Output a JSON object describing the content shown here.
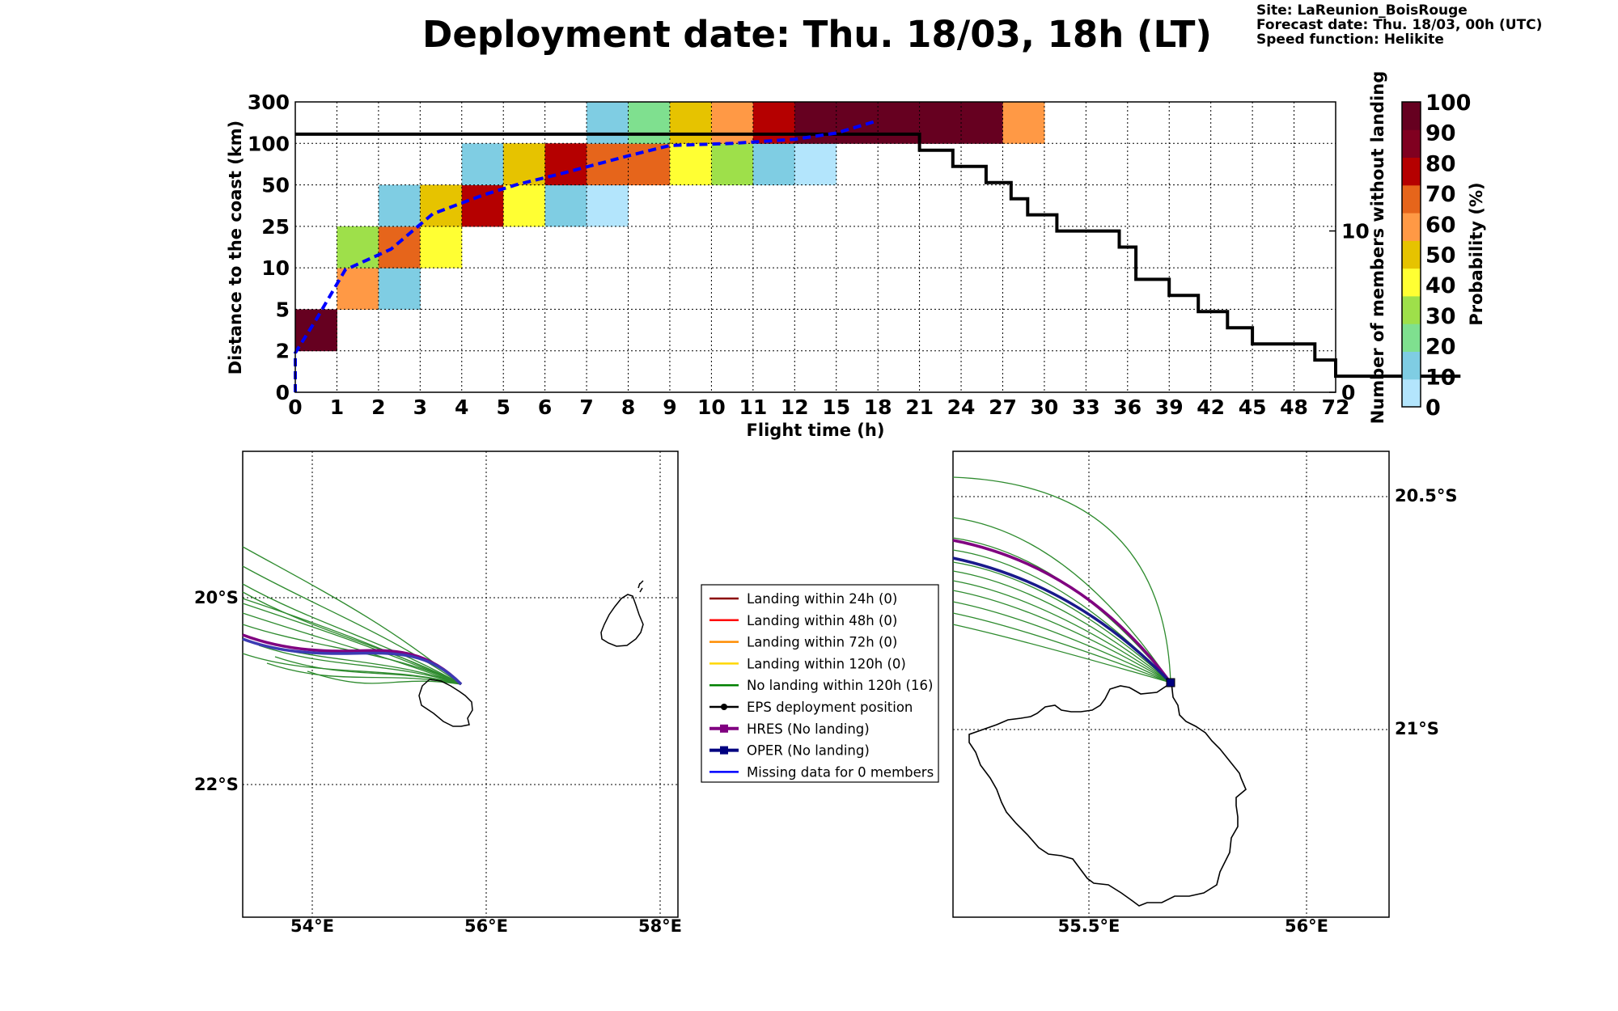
{
  "header": {
    "title": "Deployment date: Thu. 18/03, 18h (LT)",
    "site": "Site: LaReunion_BoisRouge",
    "forecast": "Forecast date: Thu. 18/03, 00h (UTC)",
    "speed": "Speed function: Helikite"
  },
  "chart_data": [
    {
      "type": "heatmap",
      "xlabel": "Flight time (h)",
      "ylabel": "Distance to the coast (km)",
      "ylabel_right": "Number of members without landing",
      "colorbar_label": "Probability (%)",
      "x_ticks": [
        "0",
        "1",
        "2",
        "3",
        "4",
        "5",
        "6",
        "7",
        "8",
        "9",
        "10",
        "11",
        "12",
        "15",
        "18",
        "21",
        "24",
        "27",
        "30",
        "33",
        "36",
        "39",
        "42",
        "45",
        "48",
        "72"
      ],
      "y_ticks": [
        "0",
        "2",
        "5",
        "10",
        "25",
        "50",
        "100",
        "300"
      ],
      "right_ticks": [
        "0",
        "10"
      ],
      "right_ylim": [
        0,
        18
      ],
      "colorbar_ticks": [
        "0",
        "10",
        "20",
        "30",
        "40",
        "50",
        "60",
        "70",
        "80",
        "90",
        "100"
      ],
      "colorbar_colors": [
        "#b3e5fc",
        "#7fcde3",
        "#7fe08f",
        "#9ee04a",
        "#ffff33",
        "#e6c300",
        "#ff9945",
        "#e6651b",
        "#b50000",
        "#800020",
        "#660020"
      ],
      "cells": [
        {
          "col": 0,
          "row": 1,
          "p": 100
        },
        {
          "col": 1,
          "row": 2,
          "p": 60
        },
        {
          "col": 1,
          "row": 3,
          "p": 30
        },
        {
          "col": 2,
          "row": 2,
          "p": 10
        },
        {
          "col": 2,
          "row": 3,
          "p": 70
        },
        {
          "col": 2,
          "row": 4,
          "p": 10
        },
        {
          "col": 3,
          "row": 3,
          "p": 40
        },
        {
          "col": 3,
          "row": 4,
          "p": 50
        },
        {
          "col": 4,
          "row": 4,
          "p": 80
        },
        {
          "col": 4,
          "row": 5,
          "p": 10
        },
        {
          "col": 5,
          "row": 4,
          "p": 40
        },
        {
          "col": 5,
          "row": 5,
          "p": 50
        },
        {
          "col": 6,
          "row": 4,
          "p": 10
        },
        {
          "col": 6,
          "row": 5,
          "p": 80
        },
        {
          "col": 7,
          "row": 4,
          "p": 0
        },
        {
          "col": 7,
          "row": 5,
          "p": 70
        },
        {
          "col": 7,
          "row": 6,
          "p": 10
        },
        {
          "col": 8,
          "row": 5,
          "p": 70
        },
        {
          "col": 8,
          "row": 6,
          "p": 20
        },
        {
          "col": 9,
          "row": 5,
          "p": 40
        },
        {
          "col": 9,
          "row": 6,
          "p": 50
        },
        {
          "col": 10,
          "row": 5,
          "p": 30
        },
        {
          "col": 10,
          "row": 6,
          "p": 60
        },
        {
          "col": 11,
          "row": 5,
          "p": 10
        },
        {
          "col": 11,
          "row": 6,
          "p": 80
        },
        {
          "col": 12,
          "row": 5,
          "p": 0
        },
        {
          "col": 12,
          "row": 6,
          "p": 100
        },
        {
          "col": 13,
          "row": 6,
          "p": 100
        },
        {
          "col": 14,
          "row": 6,
          "p": 100
        },
        {
          "col": 15,
          "row": 6,
          "p": 100
        },
        {
          "col": 16,
          "row": 6,
          "p": 100
        },
        {
          "col": 17,
          "row": 6,
          "p": 60
        }
      ],
      "blue_dashed": [
        [
          0,
          0
        ],
        [
          0,
          0.95
        ],
        [
          0.5,
          1.75
        ],
        [
          1.2,
          2.95
        ],
        [
          2.3,
          3.45
        ],
        [
          3.3,
          4.3
        ],
        [
          4.5,
          4.75
        ],
        [
          5.3,
          5.0
        ],
        [
          6.5,
          5.3
        ],
        [
          8,
          5.7
        ],
        [
          9,
          5.95
        ],
        [
          10.5,
          6.0
        ],
        [
          12,
          6.1
        ],
        [
          13,
          6.25
        ],
        [
          14,
          6.55
        ]
      ],
      "members_step": [
        [
          0,
          16
        ],
        [
          15,
          16
        ],
        [
          15,
          15
        ],
        [
          15.8,
          15
        ],
        [
          15.8,
          14
        ],
        [
          16.6,
          14
        ],
        [
          16.6,
          13
        ],
        [
          17.2,
          13
        ],
        [
          17.2,
          12
        ],
        [
          17.6,
          12
        ],
        [
          17.6,
          11
        ],
        [
          18.3,
          11
        ],
        [
          18.3,
          10
        ],
        [
          19.8,
          10
        ],
        [
          19.8,
          9
        ],
        [
          20.2,
          9
        ],
        [
          20.2,
          7
        ],
        [
          21,
          7
        ],
        [
          21,
          6
        ],
        [
          21.7,
          6
        ],
        [
          21.7,
          5
        ],
        [
          22.4,
          5
        ],
        [
          22.4,
          4
        ],
        [
          23,
          4
        ],
        [
          23,
          3
        ],
        [
          24.5,
          3
        ],
        [
          24.5,
          2
        ],
        [
          25,
          2
        ],
        [
          25,
          1
        ],
        [
          28,
          1
        ]
      ]
    }
  ],
  "map_left": {
    "lon_ticks": [
      "54°E",
      "56°E",
      "58°E"
    ],
    "lat_ticks": [
      "20°S",
      "22°S"
    ]
  },
  "map_right": {
    "lon_ticks": [
      "55.5°E",
      "56°E"
    ],
    "lat_ticks": [
      "20.5°S",
      "21°S"
    ]
  },
  "legend": {
    "items": [
      {
        "label": "Landing within 24h (0)",
        "color": "#8b0000"
      },
      {
        "label": "Landing within 48h (0)",
        "color": "#ff0000"
      },
      {
        "label": "Landing within 72h (0)",
        "color": "#ff8c00"
      },
      {
        "label": "Landing within 120h (0)",
        "color": "#ffd700"
      },
      {
        "label": "No landing within 120h (16)",
        "color": "#008000"
      },
      {
        "label": "EPS deployment position",
        "color": "#000000"
      },
      {
        "label": "HRES (No landing)",
        "color": "#800080"
      },
      {
        "label": "OPER (No landing)",
        "color": "#000080"
      },
      {
        "label": "Missing data for 0 members",
        "color": "#0000ff"
      }
    ]
  }
}
